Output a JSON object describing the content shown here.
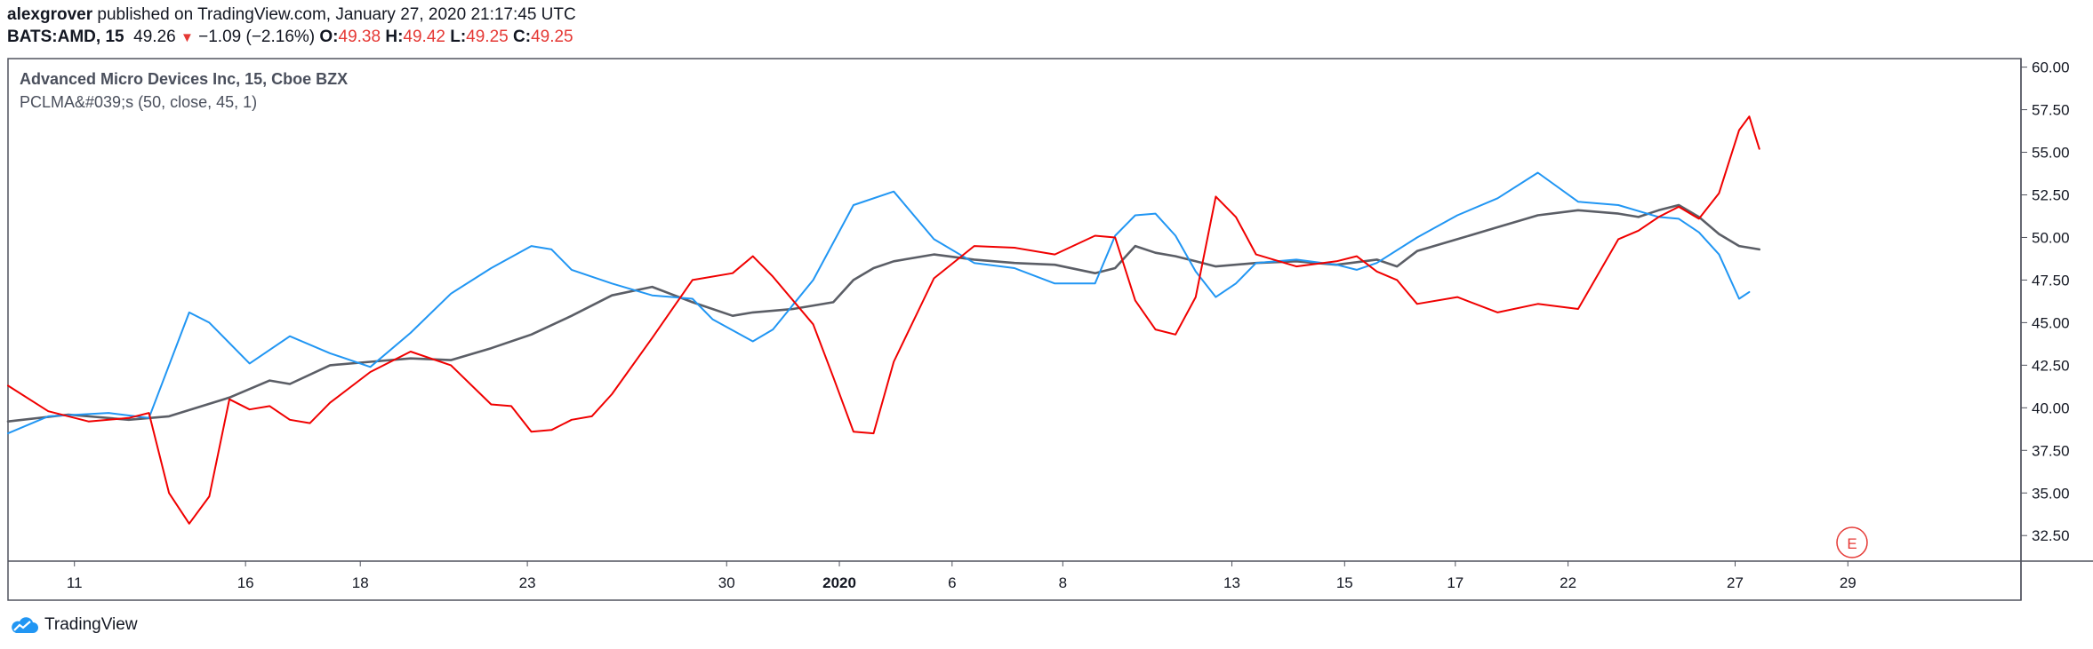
{
  "header": {
    "author": "alexgrover",
    "published_text": " published on TradingView.com, January 27, 2020 21:17:45 UTC",
    "symbol": "BATS:AMD, 15",
    "last": "49.26",
    "change_arrow": "▼",
    "change": "−1.09 (−2.16%)",
    "o_label": "O:",
    "o_val": "49.38",
    "h_label": "H:",
    "h_val": "49.42",
    "l_label": "L:",
    "l_val": "49.25",
    "c_label": "C:",
    "c_val": "49.25"
  },
  "legend": {
    "title": "Advanced Micro Devices Inc, 15, Cboe BZX",
    "indicator": "PCLMA&#039;s (50, close, 45, 1)"
  },
  "earnings_marker": "E",
  "footer": {
    "brand": "TradingView"
  },
  "colors": {
    "price": "#5b5e66",
    "blue": "#2196f3",
    "red": "#f00000",
    "grid": "#e0e3eb",
    "axis": "#50535e"
  },
  "chart_data": {
    "type": "line",
    "ylim": [
      31.0,
      60.5
    ],
    "y_ticks": [
      "32.50",
      "35.00",
      "37.50",
      "40.00",
      "42.50",
      "45.00",
      "47.50",
      "50.00",
      "52.50",
      "55.00",
      "57.50",
      "60.00"
    ],
    "x_range": [
      0,
      100
    ],
    "x_ticks": [
      {
        "label": "11",
        "x": 3.3
      },
      {
        "label": "16",
        "x": 11.8
      },
      {
        "label": "18",
        "x": 17.5
      },
      {
        "label": "23",
        "x": 25.8
      },
      {
        "label": "30",
        "x": 35.7
      },
      {
        "label": "2020",
        "x": 41.3
      },
      {
        "label": "6",
        "x": 46.9
      },
      {
        "label": "8",
        "x": 52.4
      },
      {
        "label": "13",
        "x": 60.8
      },
      {
        "label": "15",
        "x": 66.4
      },
      {
        "label": "17",
        "x": 71.9
      },
      {
        "label": "22",
        "x": 77.5
      },
      {
        "label": "27",
        "x": 85.8
      },
      {
        "label": "29",
        "x": 91.4
      }
    ],
    "series": [
      {
        "values_x": [
          0,
          3,
          6,
          8,
          11,
          13,
          14,
          16,
          18,
          20,
          22,
          24,
          26,
          28,
          30,
          32,
          34,
          36,
          37,
          39,
          41,
          42,
          43,
          44,
          46,
          48,
          50,
          52,
          54,
          55,
          56,
          57,
          58,
          59,
          60,
          62,
          64,
          66,
          68,
          69,
          70,
          72,
          74,
          76,
          78,
          80,
          81,
          82,
          83,
          84,
          85,
          86,
          87
        ],
        "values_y": [
          39.2,
          39.6,
          39.3,
          39.5,
          40.6,
          41.6,
          41.4,
          42.5,
          42.7,
          42.9,
          42.8,
          43.5,
          44.3,
          45.4,
          46.6,
          47.1,
          46.2,
          45.4,
          45.6,
          45.8,
          46.2,
          47.5,
          48.2,
          48.6,
          49.0,
          48.7,
          48.5,
          48.4,
          47.9,
          48.2,
          49.5,
          49.1,
          48.9,
          48.6,
          48.3,
          48.5,
          48.6,
          48.4,
          48.7,
          48.3,
          49.2,
          49.9,
          50.6,
          51.3,
          51.6,
          51.4,
          51.2,
          51.6,
          51.9,
          51.2,
          50.2,
          49.5,
          49.3
        ]
      },
      {
        "values_x": [
          0,
          2,
          5,
          7,
          9,
          10,
          12,
          14,
          16,
          18,
          20,
          22,
          24,
          26,
          27,
          28,
          30,
          32,
          34,
          35,
          37,
          38,
          40,
          42,
          44,
          46,
          48,
          50,
          52,
          54,
          55,
          56,
          57,
          58,
          59,
          60,
          61,
          62,
          64,
          66,
          67,
          68,
          70,
          72,
          74,
          76,
          78,
          80,
          82,
          83,
          84,
          85,
          86,
          86.5
        ],
        "values_y": [
          38.5,
          39.5,
          39.7,
          39.4,
          45.6,
          45.0,
          42.6,
          44.2,
          43.2,
          42.4,
          44.4,
          46.7,
          48.2,
          49.5,
          49.3,
          48.1,
          47.3,
          46.6,
          46.4,
          45.2,
          43.9,
          44.6,
          47.5,
          51.9,
          52.7,
          49.9,
          48.5,
          48.2,
          47.3,
          47.3,
          50.1,
          51.3,
          51.4,
          50.1,
          48.0,
          46.5,
          47.3,
          48.5,
          48.7,
          48.4,
          48.1,
          48.5,
          50.0,
          51.3,
          52.3,
          53.8,
          52.1,
          51.9,
          51.2,
          51.1,
          50.3,
          49.0,
          46.4,
          46.8
        ]
      },
      {
        "values_x": [
          0,
          2,
          4,
          6,
          7,
          8,
          9,
          10,
          11,
          12,
          13,
          14,
          15,
          16,
          18,
          20,
          22,
          24,
          25,
          26,
          27,
          28,
          29,
          30,
          32,
          34,
          36,
          37,
          38,
          40,
          41,
          42,
          43,
          44,
          46,
          48,
          50,
          52,
          54,
          55,
          56,
          57,
          58,
          59,
          60,
          61,
          62,
          64,
          66,
          67,
          68,
          69,
          70,
          72,
          74,
          76,
          78,
          80,
          81,
          82,
          83,
          84,
          85,
          86,
          86.5,
          87
        ],
        "values_y": [
          41.3,
          39.8,
          39.2,
          39.4,
          39.7,
          35.0,
          33.2,
          34.8,
          40.5,
          39.9,
          40.1,
          39.3,
          39.1,
          40.3,
          42.1,
          43.3,
          42.5,
          40.2,
          40.1,
          38.6,
          38.7,
          39.3,
          39.5,
          40.8,
          44.1,
          47.5,
          47.9,
          48.9,
          47.7,
          44.9,
          41.8,
          38.6,
          38.5,
          42.7,
          47.6,
          49.5,
          49.4,
          49.0,
          50.1,
          50.0,
          46.3,
          44.6,
          44.3,
          46.5,
          52.4,
          51.2,
          49.0,
          48.3,
          48.6,
          48.9,
          48.0,
          47.5,
          46.1,
          46.5,
          45.6,
          46.1,
          45.8,
          49.9,
          50.4,
          51.2,
          51.8,
          51.1,
          52.6,
          56.3,
          57.1,
          55.2
        ]
      }
    ]
  }
}
